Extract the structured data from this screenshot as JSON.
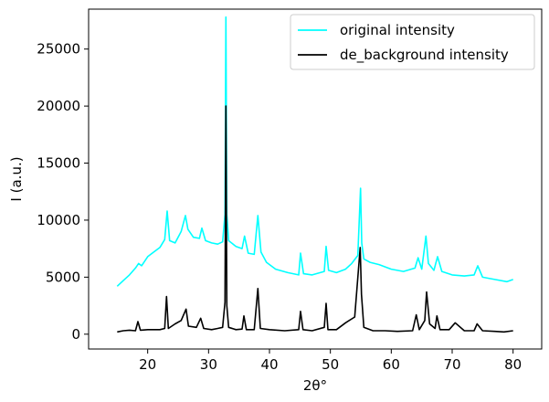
{
  "chart_data": {
    "type": "line",
    "title": "",
    "xlabel": "2θ°",
    "ylabel": "I (a.u.)",
    "xlim": [
      10.3,
      84.7
    ],
    "ylim": [
      -1300,
      28500
    ],
    "xticks": [
      20,
      30,
      40,
      50,
      60,
      70,
      80
    ],
    "yticks": [
      0,
      5000,
      10000,
      15000,
      20000,
      25000
    ],
    "grid": false,
    "legend_position": "top-right",
    "series": [
      {
        "name": "original intensity",
        "color": "#00ffff",
        "x": [
          15,
          16,
          17,
          18,
          18.5,
          19,
          20,
          21,
          22,
          22.8,
          23.2,
          23.6,
          24.5,
          25.5,
          26.2,
          26.6,
          27.5,
          28.5,
          28.9,
          29.5,
          30.5,
          31.5,
          32.3,
          32.7,
          32.85,
          33.0,
          33.3,
          34.5,
          35.5,
          35.9,
          36.5,
          37.5,
          38.1,
          38.6,
          39.5,
          41,
          43,
          44.8,
          45.1,
          45.6,
          47,
          49.0,
          49.3,
          49.7,
          51,
          52.5,
          53.5,
          54.5,
          54.95,
          55.15,
          55.5,
          56.5,
          58,
          60,
          62,
          63.9,
          64.4,
          65,
          65.7,
          66.1,
          67,
          67.6,
          68.3,
          70,
          72,
          73.6,
          74.2,
          75,
          77,
          79,
          80
        ],
        "y": [
          4200,
          4700,
          5200,
          5800,
          6200,
          6000,
          6800,
          7200,
          7600,
          8300,
          10800,
          8200,
          8000,
          9000,
          10400,
          9200,
          8500,
          8400,
          9300,
          8200,
          8000,
          7900,
          8100,
          10500,
          27800,
          10500,
          8200,
          7700,
          7500,
          8600,
          7100,
          7000,
          10400,
          7200,
          6300,
          5700,
          5400,
          5200,
          7100,
          5300,
          5200,
          5500,
          7700,
          5600,
          5400,
          5700,
          6200,
          6900,
          12800,
          8000,
          6600,
          6300,
          6100,
          5700,
          5500,
          5800,
          6700,
          5700,
          8600,
          6200,
          5600,
          6800,
          5500,
          5200,
          5100,
          5200,
          6000,
          5000,
          4800,
          4600,
          4800
        ]
      },
      {
        "name": "de_background intensity",
        "color": "#000000",
        "x": [
          15,
          16,
          17,
          18,
          18.4,
          18.8,
          20,
          22,
          22.8,
          23.1,
          23.4,
          24.5,
          25.5,
          26.3,
          26.7,
          28,
          28.7,
          29.2,
          30.5,
          31.5,
          32.3,
          32.7,
          32.85,
          33.0,
          33.3,
          34.5,
          35.5,
          35.8,
          36.2,
          37.5,
          38.1,
          38.5,
          40,
          42.5,
          44.8,
          45.1,
          45.5,
          47,
          49.0,
          49.3,
          49.6,
          51,
          52.5,
          54,
          54.9,
          55.1,
          55.5,
          57,
          59,
          61,
          63.5,
          64.1,
          64.6,
          65.5,
          65.8,
          66.3,
          67.2,
          67.5,
          68,
          69.5,
          70.5,
          72,
          73.6,
          74.1,
          75,
          77,
          78.5,
          80
        ],
        "y": [
          200,
          300,
          350,
          300,
          1100,
          350,
          400,
          400,
          500,
          3300,
          500,
          900,
          1200,
          2200,
          700,
          600,
          1400,
          500,
          400,
          500,
          600,
          2800,
          20000,
          2500,
          600,
          400,
          450,
          1600,
          400,
          400,
          4000,
          500,
          400,
          300,
          400,
          2000,
          400,
          300,
          600,
          2700,
          400,
          400,
          1000,
          1500,
          7600,
          3500,
          600,
          300,
          300,
          250,
          300,
          1700,
          400,
          1200,
          3700,
          900,
          500,
          1600,
          400,
          400,
          1000,
          300,
          300,
          900,
          300,
          250,
          200,
          300
        ]
      }
    ]
  }
}
